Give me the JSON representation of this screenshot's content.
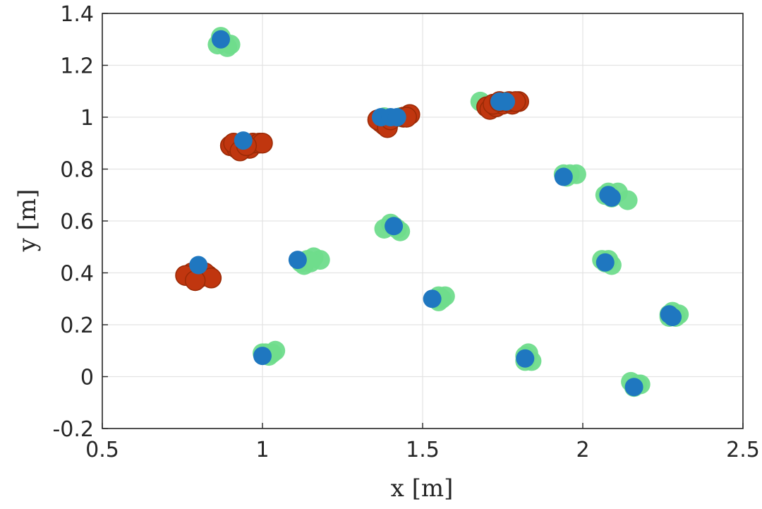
{
  "chart_data": {
    "type": "scatter",
    "title": "",
    "xlabel": "x [m]",
    "ylabel": "y [m]",
    "xlim": [
      0.5,
      2.5
    ],
    "ylim": [
      -0.2,
      1.4
    ],
    "xticks": [
      0.5,
      1,
      1.5,
      2,
      2.5
    ],
    "yticks": [
      -0.2,
      0,
      0.2,
      0.4,
      0.6,
      0.8,
      1,
      1.2,
      1.4
    ],
    "xtick_labels": [
      "0.5",
      "1",
      "1.5",
      "2",
      "2.5"
    ],
    "ytick_labels": [
      "-0.2",
      "0",
      "0.2",
      "0.4",
      "0.6",
      "0.8",
      "1",
      "1.2",
      "1.4"
    ],
    "grid": true,
    "colors": {
      "green": "#6fdc8c",
      "red": "#c0360f",
      "red_edge": "#9a2a06",
      "blue": "#1f77c0"
    },
    "series": [
      {
        "color": "green",
        "marker": "filled-circle",
        "points": [
          [
            0.86,
            1.28
          ],
          [
            0.88,
            1.29
          ],
          [
            0.9,
            1.28
          ],
          [
            0.87,
            1.31
          ],
          [
            0.89,
            1.27
          ],
          [
            0.94,
            0.9
          ],
          [
            0.97,
            0.9
          ],
          [
            1.38,
            1.0
          ],
          [
            1.43,
            1.0
          ],
          [
            1.68,
            1.06
          ],
          [
            1.76,
            1.06
          ],
          [
            1.94,
            0.78
          ],
          [
            1.96,
            0.78
          ],
          [
            1.98,
            0.78
          ],
          [
            1.95,
            0.77
          ],
          [
            2.07,
            0.7
          ],
          [
            2.09,
            0.69
          ],
          [
            2.11,
            0.71
          ],
          [
            2.14,
            0.68
          ],
          [
            2.08,
            0.71
          ],
          [
            1.38,
            0.57
          ],
          [
            1.41,
            0.58
          ],
          [
            1.43,
            0.56
          ],
          [
            1.4,
            0.59
          ],
          [
            1.42,
            0.57
          ],
          [
            1.12,
            0.44
          ],
          [
            1.14,
            0.45
          ],
          [
            1.16,
            0.46
          ],
          [
            1.18,
            0.45
          ],
          [
            1.13,
            0.43
          ],
          [
            1.15,
            0.44
          ],
          [
            2.07,
            0.44
          ],
          [
            2.09,
            0.43
          ],
          [
            2.08,
            0.45
          ],
          [
            2.06,
            0.45
          ],
          [
            1.54,
            0.3
          ],
          [
            1.56,
            0.3
          ],
          [
            1.55,
            0.29
          ],
          [
            1.57,
            0.31
          ],
          [
            1.55,
            0.31
          ],
          [
            2.27,
            0.24
          ],
          [
            2.29,
            0.23
          ],
          [
            2.28,
            0.25
          ],
          [
            2.3,
            0.24
          ],
          [
            2.27,
            0.23
          ],
          [
            1.01,
            0.09
          ],
          [
            1.03,
            0.09
          ],
          [
            1.02,
            0.08
          ],
          [
            1.04,
            0.1
          ],
          [
            1.0,
            0.09
          ],
          [
            1.82,
            0.08
          ],
          [
            1.84,
            0.06
          ],
          [
            1.83,
            0.09
          ],
          [
            1.82,
            0.06
          ],
          [
            2.15,
            -0.02
          ],
          [
            2.17,
            -0.03
          ],
          [
            2.16,
            -0.04
          ],
          [
            2.18,
            -0.03
          ]
        ]
      },
      {
        "color": "red",
        "marker": "filled-circle",
        "points": [
          [
            0.77,
            0.39
          ],
          [
            0.79,
            0.38
          ],
          [
            0.81,
            0.39
          ],
          [
            0.83,
            0.39
          ],
          [
            0.78,
            0.4
          ],
          [
            0.8,
            0.38
          ],
          [
            0.82,
            0.4
          ],
          [
            0.76,
            0.39
          ],
          [
            0.84,
            0.38
          ],
          [
            0.79,
            0.37
          ],
          [
            0.9,
            0.89
          ],
          [
            0.92,
            0.88
          ],
          [
            0.94,
            0.89
          ],
          [
            0.96,
            0.88
          ],
          [
            0.91,
            0.9
          ],
          [
            0.93,
            0.87
          ],
          [
            0.97,
            0.9
          ],
          [
            0.99,
            0.9
          ],
          [
            1.0,
            0.9
          ],
          [
            0.95,
            0.89
          ],
          [
            1.37,
            0.98
          ],
          [
            1.38,
            0.97
          ],
          [
            1.36,
            0.99
          ],
          [
            1.39,
            0.96
          ],
          [
            1.44,
            1.0
          ],
          [
            1.46,
            1.01
          ],
          [
            1.45,
            1.0
          ],
          [
            1.4,
            0.99
          ],
          [
            1.7,
            1.04
          ],
          [
            1.71,
            1.03
          ],
          [
            1.73,
            1.04
          ],
          [
            1.75,
            1.05
          ],
          [
            1.78,
            1.05
          ],
          [
            1.8,
            1.06
          ],
          [
            1.72,
            1.05
          ],
          [
            1.74,
            1.06
          ],
          [
            1.77,
            1.06
          ],
          [
            1.79,
            1.06
          ]
        ]
      },
      {
        "color": "blue",
        "marker": "filled-circle",
        "points": [
          [
            0.87,
            1.3
          ],
          [
            0.94,
            0.91
          ],
          [
            0.8,
            0.43
          ],
          [
            1.37,
            1.0
          ],
          [
            1.4,
            1.0
          ],
          [
            1.42,
            1.0
          ],
          [
            1.74,
            1.06
          ],
          [
            1.76,
            1.06
          ],
          [
            1.94,
            0.77
          ],
          [
            2.08,
            0.7
          ],
          [
            2.09,
            0.69
          ],
          [
            1.41,
            0.58
          ],
          [
            1.11,
            0.45
          ],
          [
            2.07,
            0.44
          ],
          [
            1.53,
            0.3
          ],
          [
            2.27,
            0.24
          ],
          [
            2.28,
            0.23
          ],
          [
            1.0,
            0.08
          ],
          [
            1.82,
            0.07
          ],
          [
            2.16,
            -0.04
          ]
        ]
      }
    ]
  }
}
